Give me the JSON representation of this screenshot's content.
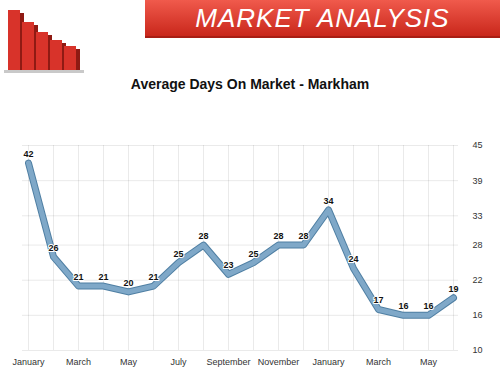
{
  "header": "MARKET ANALYSIS",
  "chart_data": {
    "type": "line",
    "title": "Average Days On Market - Markham",
    "categories": [
      "January",
      null,
      "March",
      null,
      "May",
      null,
      "July",
      null,
      "September",
      null,
      "November",
      null,
      "January",
      null,
      "March",
      null,
      "May",
      null
    ],
    "values": [
      42,
      26,
      21,
      21,
      20,
      21,
      25,
      28,
      23,
      25,
      28,
      28,
      34,
      24,
      17,
      16,
      16,
      19
    ],
    "color": "#7fa8c8",
    "ylim": [
      10,
      45
    ],
    "yticks": [
      10,
      16,
      22,
      28,
      33,
      39,
      45
    ],
    "grid": true,
    "data_labels": true
  }
}
